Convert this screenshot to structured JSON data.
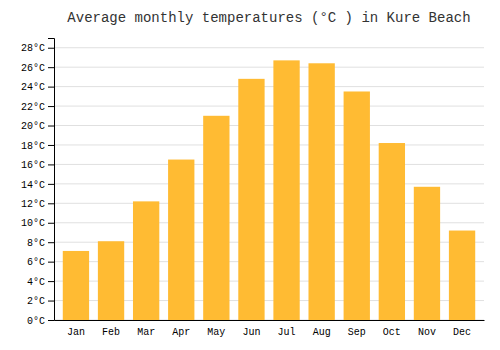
{
  "chart_data": {
    "type": "bar",
    "title": "Average monthly temperatures (°C ) in Kure Beach",
    "categories": [
      "Jan",
      "Feb",
      "Mar",
      "Apr",
      "May",
      "Jun",
      "Jul",
      "Aug",
      "Sep",
      "Oct",
      "Nov",
      "Dec"
    ],
    "values": [
      7.1,
      8.1,
      12.2,
      16.5,
      21.0,
      24.8,
      26.7,
      26.4,
      23.5,
      18.2,
      13.7,
      9.2
    ],
    "color": "#FFBB33",
    "ylim": [
      0,
      29
    ],
    "yticks": [
      {
        "value": 0,
        "label": "0°C"
      },
      {
        "value": 2,
        "label": "2°C"
      },
      {
        "value": 4,
        "label": "4°C"
      },
      {
        "value": 6,
        "label": "6°C"
      },
      {
        "value": 8,
        "label": "8°C"
      },
      {
        "value": 10,
        "label": "10°C"
      },
      {
        "value": 12,
        "label": "12°C"
      },
      {
        "value": 14,
        "label": "14°C"
      },
      {
        "value": 16,
        "label": "16°C"
      },
      {
        "value": 18,
        "label": "18°C"
      },
      {
        "value": 20,
        "label": "20°C"
      },
      {
        "value": 22,
        "label": "22°C"
      },
      {
        "value": 24,
        "label": "24°C"
      },
      {
        "value": 26,
        "label": "26°C"
      },
      {
        "value": 28,
        "label": "28°C"
      }
    ],
    "grid": true
  }
}
